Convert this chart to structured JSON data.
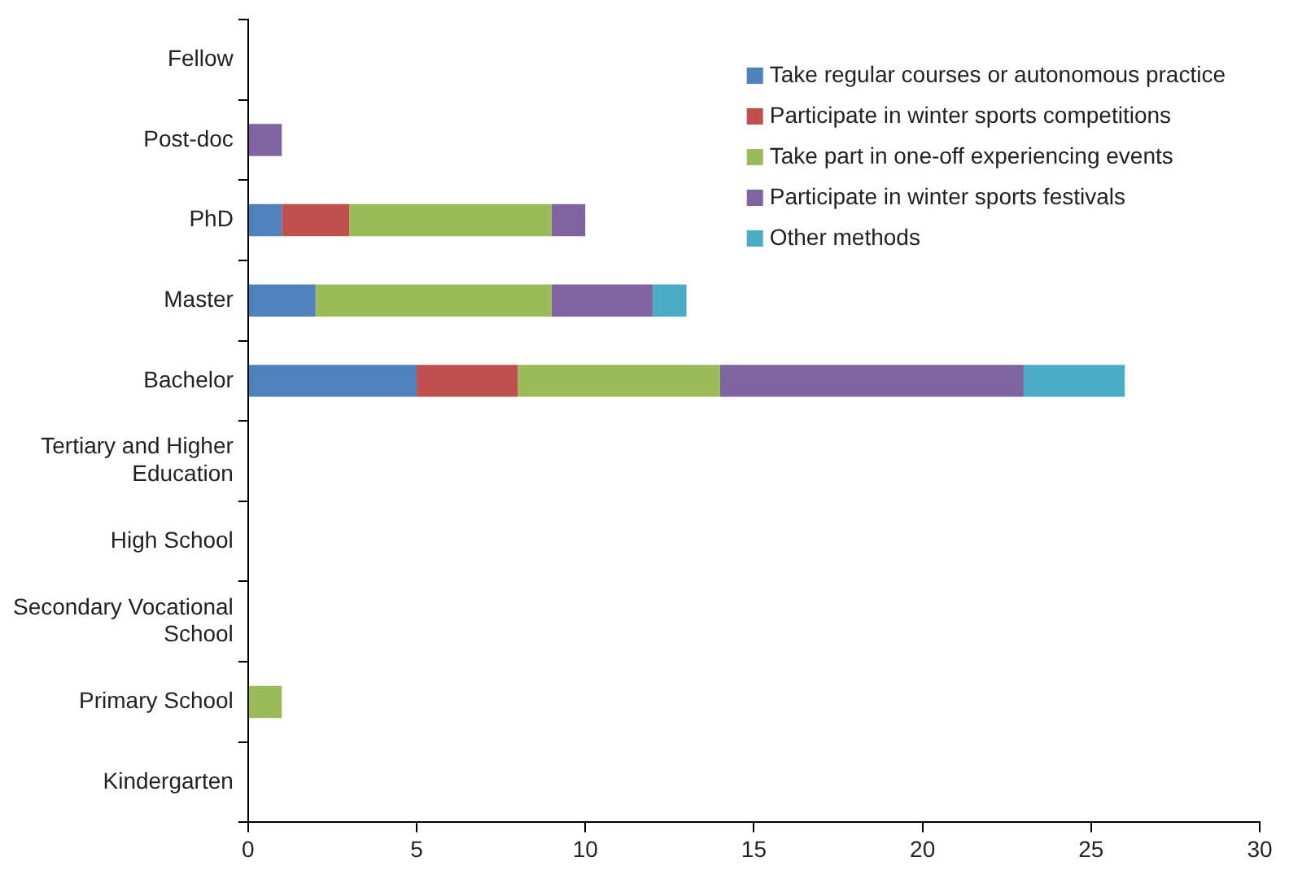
{
  "chart_data": {
    "type": "bar",
    "orientation": "horizontal",
    "stacked": true,
    "grid": false,
    "legend": "top right",
    "categories": [
      "Fellow",
      "Post-doc",
      "PhD",
      "Master",
      "Bachelor",
      "Tertiary and Higher Education",
      "High School",
      "Secondary Vocational School",
      "Primary School",
      "Kindergarten"
    ],
    "series": [
      {
        "name": "Take regular courses or autonomous practice",
        "color": "#4f81bd",
        "values": [
          0,
          0,
          1,
          2,
          5,
          0,
          0,
          0,
          0,
          0
        ]
      },
      {
        "name": "Participate in winter sports competitions",
        "color": "#c0504d",
        "values": [
          0,
          0,
          2,
          0,
          3,
          0,
          0,
          0,
          0,
          0
        ]
      },
      {
        "name": "Take part in one-off experiencing events",
        "color": "#9bbb59",
        "values": [
          0,
          0,
          6,
          7,
          6,
          0,
          0,
          0,
          1,
          0
        ]
      },
      {
        "name": "Participate in winter sports festivals",
        "color": "#8064a2",
        "values": [
          0,
          1,
          1,
          3,
          9,
          0,
          0,
          0,
          0,
          0
        ]
      },
      {
        "name": "Other methods",
        "color": "#4bacc6",
        "values": [
          0,
          0,
          0,
          1,
          3,
          0,
          0,
          0,
          0,
          0
        ]
      }
    ],
    "xlim": [
      0,
      30
    ],
    "xticks": [
      0,
      5,
      10,
      15,
      20,
      25,
      30
    ]
  }
}
